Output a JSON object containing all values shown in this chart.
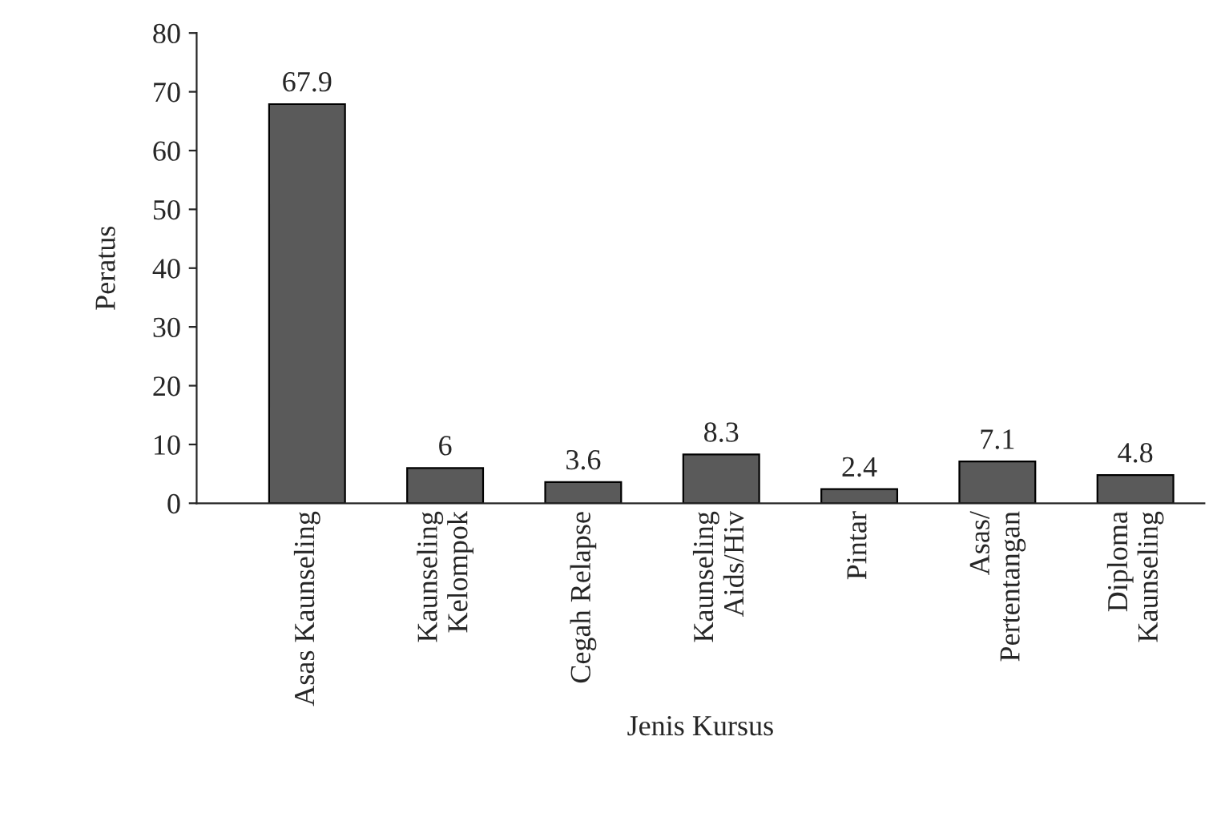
{
  "chart_data": {
    "type": "bar",
    "xlabel": "Jenis Kursus",
    "ylabel": "Peratus",
    "categories": [
      "Asas Kaunseling",
      "Kaunseling\nKelompok",
      "Cegah Relapse",
      "Kaunseling\nAids/Hiv",
      "Pintar",
      "Asas/\nPertentangan",
      "Diploma\nKaunseling"
    ],
    "values": [
      67.9,
      6,
      3.6,
      8.3,
      2.4,
      7.1,
      4.8
    ],
    "color": "#5a5a5a",
    "ylim": [
      0,
      80
    ],
    "yticks": [
      0,
      10,
      20,
      30,
      40,
      50,
      60,
      70,
      80
    ],
    "grid": false,
    "data_labels": true
  }
}
